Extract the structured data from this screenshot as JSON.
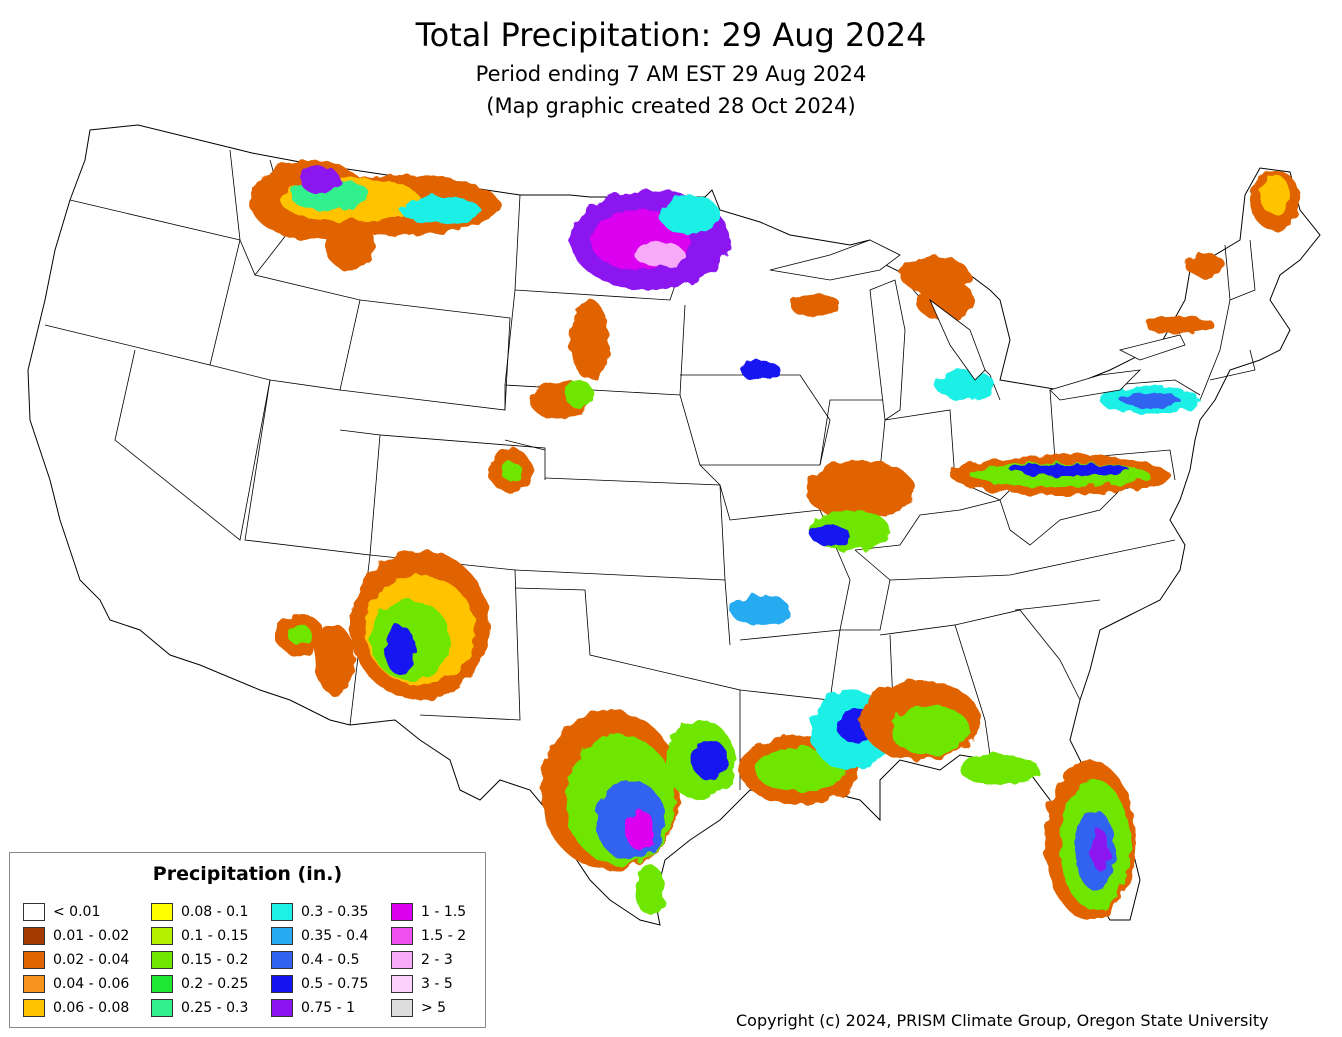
{
  "header": {
    "title": "Total Precipitation: 29 Aug 2024",
    "subtitle": "Period ending 7 AM EST 29 Aug 2024",
    "created": "(Map graphic created 28 Oct 2024)"
  },
  "legend": {
    "title": "Precipitation (in.)",
    "items": [
      {
        "label": "< 0.01",
        "color": "#ffffff"
      },
      {
        "label": "0.01 - 0.02",
        "color": "#a33a00"
      },
      {
        "label": "0.02 - 0.04",
        "color": "#e06400"
      },
      {
        "label": "0.04 - 0.06",
        "color": "#f7941d"
      },
      {
        "label": "0.06 - 0.08",
        "color": "#ffc300"
      },
      {
        "label": "0.08 - 0.1",
        "color": "#ffff00"
      },
      {
        "label": "0.1 - 0.15",
        "color": "#b4f000"
      },
      {
        "label": "0.15 - 0.2",
        "color": "#6ee600"
      },
      {
        "label": "0.2 - 0.25",
        "color": "#1ee632"
      },
      {
        "label": "0.25 - 0.3",
        "color": "#32f08c"
      },
      {
        "label": "0.3 - 0.35",
        "color": "#1ef0e6"
      },
      {
        "label": "0.35 - 0.4",
        "color": "#28aaf0"
      },
      {
        "label": "0.4 - 0.5",
        "color": "#3264f0"
      },
      {
        "label": "0.5 - 0.75",
        "color": "#1414f0"
      },
      {
        "label": "0.75 - 1",
        "color": "#8c14f0"
      },
      {
        "label": "1 - 1.5",
        "color": "#dc00f0"
      },
      {
        "label": "1.5 - 2",
        "color": "#f050f0"
      },
      {
        "label": "2 - 3",
        "color": "#f7aaf7"
      },
      {
        "label": "3 - 5",
        "color": "#fcd2fc"
      },
      {
        "label": "> 5",
        "color": "#dddddd"
      }
    ]
  },
  "footer": {
    "copyright": "Copyright (c) 2024, PRISM Climate Group, Oregon State University"
  }
}
